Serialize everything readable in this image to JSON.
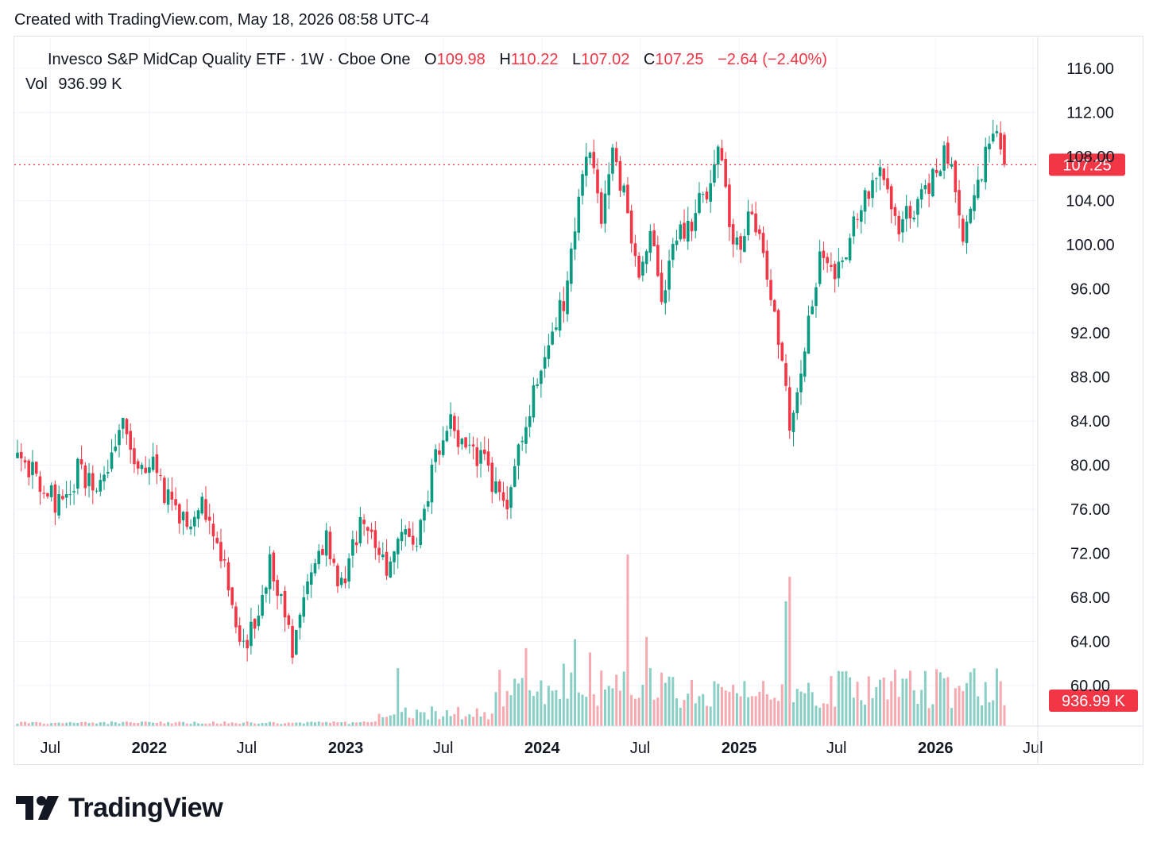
{
  "header": {
    "created_note": "Created with TradingView.com, May 18, 2026 08:58 UTC-4"
  },
  "legend": {
    "symbol": "Invesco S&P MidCap Quality ETF · 1W · Cboe One",
    "open_label": "O",
    "open": "109.98",
    "high_label": "H",
    "high": "110.22",
    "low_label": "L",
    "low": "107.02",
    "close_label": "C",
    "close": "107.25",
    "change": "−2.64 (−2.40%)",
    "volume_label": "Vol",
    "volume": "936.99 K"
  },
  "brand": {
    "logo_icon": "tradingview-logo-icon",
    "name": "TradingView"
  },
  "chart_data": {
    "type": "candlestick",
    "interval": "1W",
    "y_axis": {
      "min": 56,
      "max": 118,
      "ticks": [
        "60.00",
        "64.00",
        "68.00",
        "72.00",
        "76.00",
        "80.00",
        "84.00",
        "88.00",
        "92.00",
        "96.00",
        "100.00",
        "104.00",
        "108.00",
        "112.00",
        "116.00"
      ],
      "position": "right"
    },
    "x_axis": {
      "labels": [
        {
          "text": "Jul",
          "date": "2021-07-01",
          "bold": false
        },
        {
          "text": "2022",
          "date": "2022-01-01",
          "bold": true
        },
        {
          "text": "Jul",
          "date": "2022-07-01",
          "bold": false
        },
        {
          "text": "2023",
          "date": "2023-01-01",
          "bold": true
        },
        {
          "text": "Jul",
          "date": "2023-07-01",
          "bold": false
        },
        {
          "text": "2024",
          "date": "2024-01-01",
          "bold": true
        },
        {
          "text": "Jul",
          "date": "2024-07-01",
          "bold": false
        },
        {
          "text": "2025",
          "date": "2025-01-01",
          "bold": true
        },
        {
          "text": "Jul",
          "date": "2025-07-01",
          "bold": false
        },
        {
          "text": "2026",
          "date": "2026-01-01",
          "bold": true
        },
        {
          "text": "Jul",
          "date": "2026-07-01",
          "bold": false
        }
      ]
    },
    "grid": true,
    "last_price": {
      "value": 107.25,
      "label": "107.25"
    },
    "last_volume": {
      "label": "936.99 K"
    },
    "colors": {
      "up": "#089981",
      "down": "#f23645",
      "up_volume": "#89cfc5",
      "down_volume": "#f7a9b0",
      "grid": "#f0f3fa"
    },
    "close_path": [
      {
        "date": "2021-05-01",
        "close": 80.5
      },
      {
        "date": "2021-06-10",
        "close": 78.5
      },
      {
        "date": "2021-07-20",
        "close": 76.0
      },
      {
        "date": "2021-08-20",
        "close": 79.5
      },
      {
        "date": "2021-10-01",
        "close": 77.5
      },
      {
        "date": "2021-11-15",
        "close": 83.5
      },
      {
        "date": "2021-12-05",
        "close": 80.0
      },
      {
        "date": "2022-01-05",
        "close": 80.0
      },
      {
        "date": "2022-02-15",
        "close": 76.0
      },
      {
        "date": "2022-03-20",
        "close": 73.5
      },
      {
        "date": "2022-04-05",
        "close": 77.0
      },
      {
        "date": "2022-05-15",
        "close": 72.0
      },
      {
        "date": "2022-06-15",
        "close": 64.5
      },
      {
        "date": "2022-06-30",
        "close": 63.5
      },
      {
        "date": "2022-08-15",
        "close": 71.5
      },
      {
        "date": "2022-09-25",
        "close": 63.0
      },
      {
        "date": "2022-10-25",
        "close": 69.0
      },
      {
        "date": "2022-11-25",
        "close": 73.5
      },
      {
        "date": "2022-12-25",
        "close": 69.0
      },
      {
        "date": "2023-02-01",
        "close": 75.5
      },
      {
        "date": "2023-03-15",
        "close": 70.5
      },
      {
        "date": "2023-04-15",
        "close": 73.5
      },
      {
        "date": "2023-05-15",
        "close": 73.5
      },
      {
        "date": "2023-06-15",
        "close": 80.5
      },
      {
        "date": "2023-07-15",
        "close": 83.5
      },
      {
        "date": "2023-08-05",
        "close": 82.0
      },
      {
        "date": "2023-09-15",
        "close": 80.0
      },
      {
        "date": "2023-10-25",
        "close": 76.5
      },
      {
        "date": "2023-12-01",
        "close": 84.0
      },
      {
        "date": "2024-01-01",
        "close": 88.5
      },
      {
        "date": "2024-02-15",
        "close": 96.0
      },
      {
        "date": "2024-03-10",
        "close": 104.5
      },
      {
        "date": "2024-03-28",
        "close": 109.5
      },
      {
        "date": "2024-04-20",
        "close": 103.0
      },
      {
        "date": "2024-05-15",
        "close": 108.5
      },
      {
        "date": "2024-06-10",
        "close": 102.0
      },
      {
        "date": "2024-07-01",
        "close": 97.0
      },
      {
        "date": "2024-07-20",
        "close": 101.0
      },
      {
        "date": "2024-08-10",
        "close": 94.0
      },
      {
        "date": "2024-09-01",
        "close": 101.0
      },
      {
        "date": "2024-10-01",
        "close": 102.0
      },
      {
        "date": "2024-11-01",
        "close": 105.0
      },
      {
        "date": "2024-11-25",
        "close": 109.5
      },
      {
        "date": "2024-12-20",
        "close": 99.0
      },
      {
        "date": "2025-01-25",
        "close": 102.5
      },
      {
        "date": "2025-02-20",
        "close": 98.0
      },
      {
        "date": "2025-03-15",
        "close": 92.0
      },
      {
        "date": "2025-04-08",
        "close": 83.0
      },
      {
        "date": "2025-05-05",
        "close": 92.0
      },
      {
        "date": "2025-06-01",
        "close": 99.0
      },
      {
        "date": "2025-06-25",
        "close": 96.5
      },
      {
        "date": "2025-07-25",
        "close": 100.5
      },
      {
        "date": "2025-08-25",
        "close": 104.5
      },
      {
        "date": "2025-09-25",
        "close": 107.0
      },
      {
        "date": "2025-10-25",
        "close": 101.5
      },
      {
        "date": "2025-11-25",
        "close": 103.5
      },
      {
        "date": "2025-12-25",
        "close": 106.0
      },
      {
        "date": "2026-01-25",
        "close": 108.5
      },
      {
        "date": "2026-02-20",
        "close": 100.5
      },
      {
        "date": "2026-03-10",
        "close": 104.5
      },
      {
        "date": "2026-04-05",
        "close": 108.0
      },
      {
        "date": "2026-04-25",
        "close": 110.5
      },
      {
        "date": "2026-05-15",
        "close": 107.25
      }
    ],
    "volume_spikes": [
      {
        "date": "2023-04-10",
        "volume_k": 2600,
        "dir": "up"
      },
      {
        "date": "2023-12-05",
        "volume_k": 3500,
        "dir": "down"
      },
      {
        "date": "2024-02-10",
        "volume_k": 2800,
        "dir": "up"
      },
      {
        "date": "2024-03-01",
        "volume_k": 3900,
        "dir": "up"
      },
      {
        "date": "2024-03-30",
        "volume_k": 3300,
        "dir": "down"
      },
      {
        "date": "2024-06-10",
        "volume_k": 7700,
        "dir": "down"
      },
      {
        "date": "2024-07-10",
        "volume_k": 4000,
        "dir": "down"
      },
      {
        "date": "2025-04-01",
        "volume_k": 5600,
        "dir": "up"
      },
      {
        "date": "2025-04-08",
        "volume_k": 6700,
        "dir": "down"
      }
    ]
  }
}
